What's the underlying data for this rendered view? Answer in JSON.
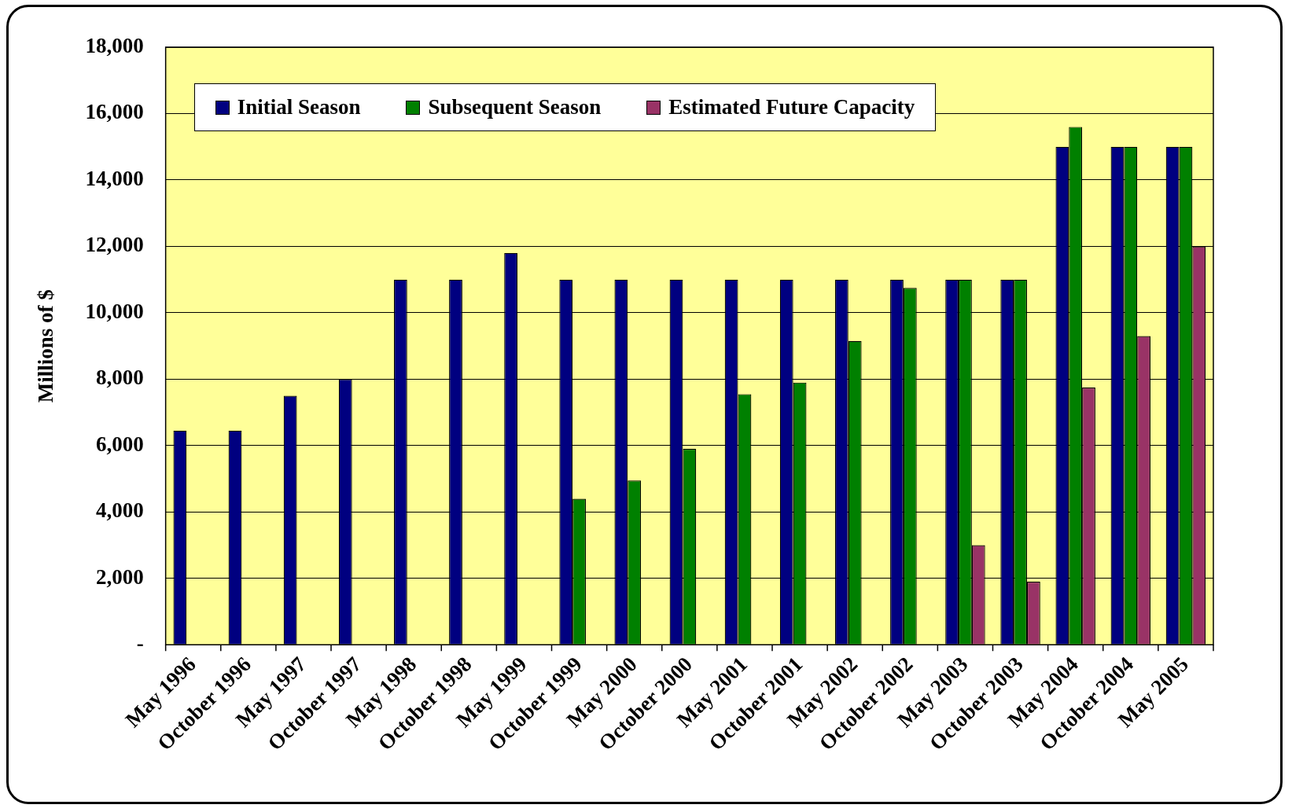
{
  "chart_data": {
    "type": "bar",
    "ylabel": "Millions of $",
    "categories": [
      "May 1996",
      "October 1996",
      "May 1997",
      "October 1997",
      "May 1998",
      "October 1998",
      "May 1999",
      "October 1999",
      "May 2000",
      "October 2000",
      "May 2001",
      "October 2001",
      "May 2002",
      "October 2002",
      "May 2003",
      "October 2003",
      "May 2004",
      "October 2004",
      "May 2005"
    ],
    "series": [
      {
        "name": "Initial Season",
        "color": "#000080",
        "values": [
          6450,
          6450,
          7500,
          8000,
          11000,
          11000,
          11800,
          11000,
          11000,
          11000,
          11000,
          11000,
          11000,
          11000,
          11000,
          11000,
          15000,
          15000,
          15000
        ]
      },
      {
        "name": "Subsequent Season",
        "color": "#008000",
        "values": [
          null,
          null,
          null,
          null,
          null,
          null,
          null,
          4400,
          4950,
          5900,
          7550,
          7900,
          9150,
          10750,
          11000,
          11000,
          15600,
          15000,
          15000
        ]
      },
      {
        "name": "Estimated Future Capacity",
        "color": "#993366",
        "values": [
          null,
          null,
          null,
          null,
          null,
          null,
          null,
          null,
          null,
          null,
          null,
          null,
          null,
          null,
          3000,
          1900,
          7750,
          9300,
          12000
        ]
      }
    ],
    "ylim": [
      0,
      18000
    ],
    "yticks": [
      {
        "value": 0,
        "label": "-"
      },
      {
        "value": 2000,
        "label": "2,000"
      },
      {
        "value": 4000,
        "label": "4,000"
      },
      {
        "value": 6000,
        "label": "6,000"
      },
      {
        "value": 8000,
        "label": "8,000"
      },
      {
        "value": 10000,
        "label": "10,000"
      },
      {
        "value": 12000,
        "label": "12,000"
      },
      {
        "value": 14000,
        "label": "14,000"
      },
      {
        "value": 16000,
        "label": "16,000"
      },
      {
        "value": 18000,
        "label": "18,000"
      }
    ],
    "grid": "y",
    "legend": "top"
  }
}
